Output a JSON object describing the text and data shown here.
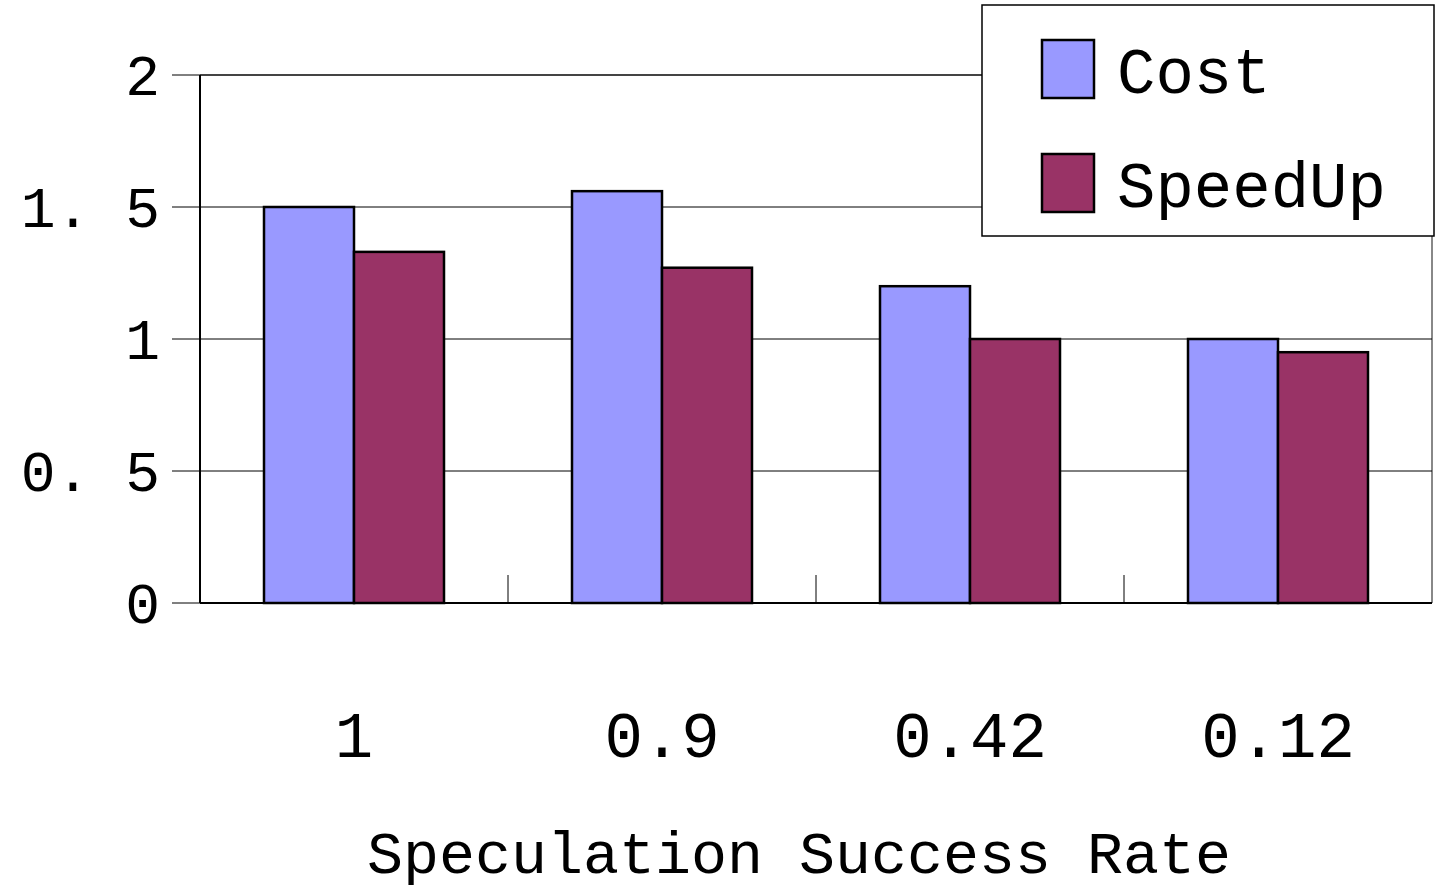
{
  "chart_data": {
    "type": "bar",
    "xlabel": "Speculation Success Rate",
    "categories": [
      "1",
      "0.9",
      "0.42",
      "0.12"
    ],
    "series": [
      {
        "name": "Cost",
        "color": "#9999ff",
        "values": [
          1.5,
          1.56,
          1.2,
          1.0
        ]
      },
      {
        "name": "SpeedUp",
        "color": "#993366",
        "values": [
          1.33,
          1.27,
          1.0,
          0.95
        ]
      }
    ],
    "ylim": [
      0,
      2
    ],
    "yticks": [
      0,
      {
        "value": 0.5,
        "label": "0. 5"
      },
      1,
      {
        "value": 1.5,
        "label": "1. 5"
      },
      2
    ],
    "grid": "y",
    "legend": "top right"
  }
}
